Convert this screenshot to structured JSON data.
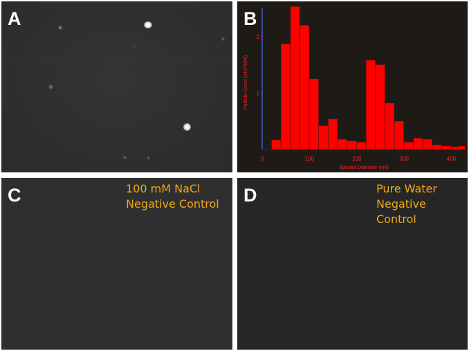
{
  "panels": {
    "a": {
      "letter": "A"
    },
    "b": {
      "letter": "B"
    },
    "c": {
      "letter": "C",
      "annotation": "100 mM NaCl\nNegative Control"
    },
    "d": {
      "letter": "D",
      "annotation": "Pure Water\nNegative\nControl"
    }
  },
  "colors": {
    "bars": "#ff0000",
    "axis_text": "#ff2020",
    "y_axis_line": "#3a5cc8",
    "annotation": "#f0a818",
    "letters": "#ffffff"
  },
  "chart_data": {
    "type": "bar",
    "title": "",
    "xlabel": "Species Diameter (nm)",
    "ylabel": "Particle Count (x10^6/ml)",
    "xlim": [
      0,
      430
    ],
    "ylim": [
      0,
      2.5
    ],
    "xticks": [
      0,
      100,
      200,
      300,
      400
    ],
    "yticks": [
      1,
      2
    ],
    "bin_width": 20,
    "bins": [
      {
        "x": 30,
        "value": 0.17
      },
      {
        "x": 50,
        "value": 1.87
      },
      {
        "x": 70,
        "value": 2.53
      },
      {
        "x": 90,
        "value": 2.2
      },
      {
        "x": 110,
        "value": 1.25
      },
      {
        "x": 130,
        "value": 0.42
      },
      {
        "x": 150,
        "value": 0.54
      },
      {
        "x": 170,
        "value": 0.18
      },
      {
        "x": 190,
        "value": 0.15
      },
      {
        "x": 210,
        "value": 0.13
      },
      {
        "x": 230,
        "value": 1.58
      },
      {
        "x": 250,
        "value": 1.5
      },
      {
        "x": 270,
        "value": 0.82
      },
      {
        "x": 290,
        "value": 0.5
      },
      {
        "x": 310,
        "value": 0.13
      },
      {
        "x": 330,
        "value": 0.2
      },
      {
        "x": 350,
        "value": 0.18
      },
      {
        "x": 370,
        "value": 0.08
      },
      {
        "x": 390,
        "value": 0.06
      },
      {
        "x": 410,
        "value": 0.05
      },
      {
        "x": 425,
        "value": 0.06
      }
    ],
    "grid": false,
    "legend": "none"
  }
}
